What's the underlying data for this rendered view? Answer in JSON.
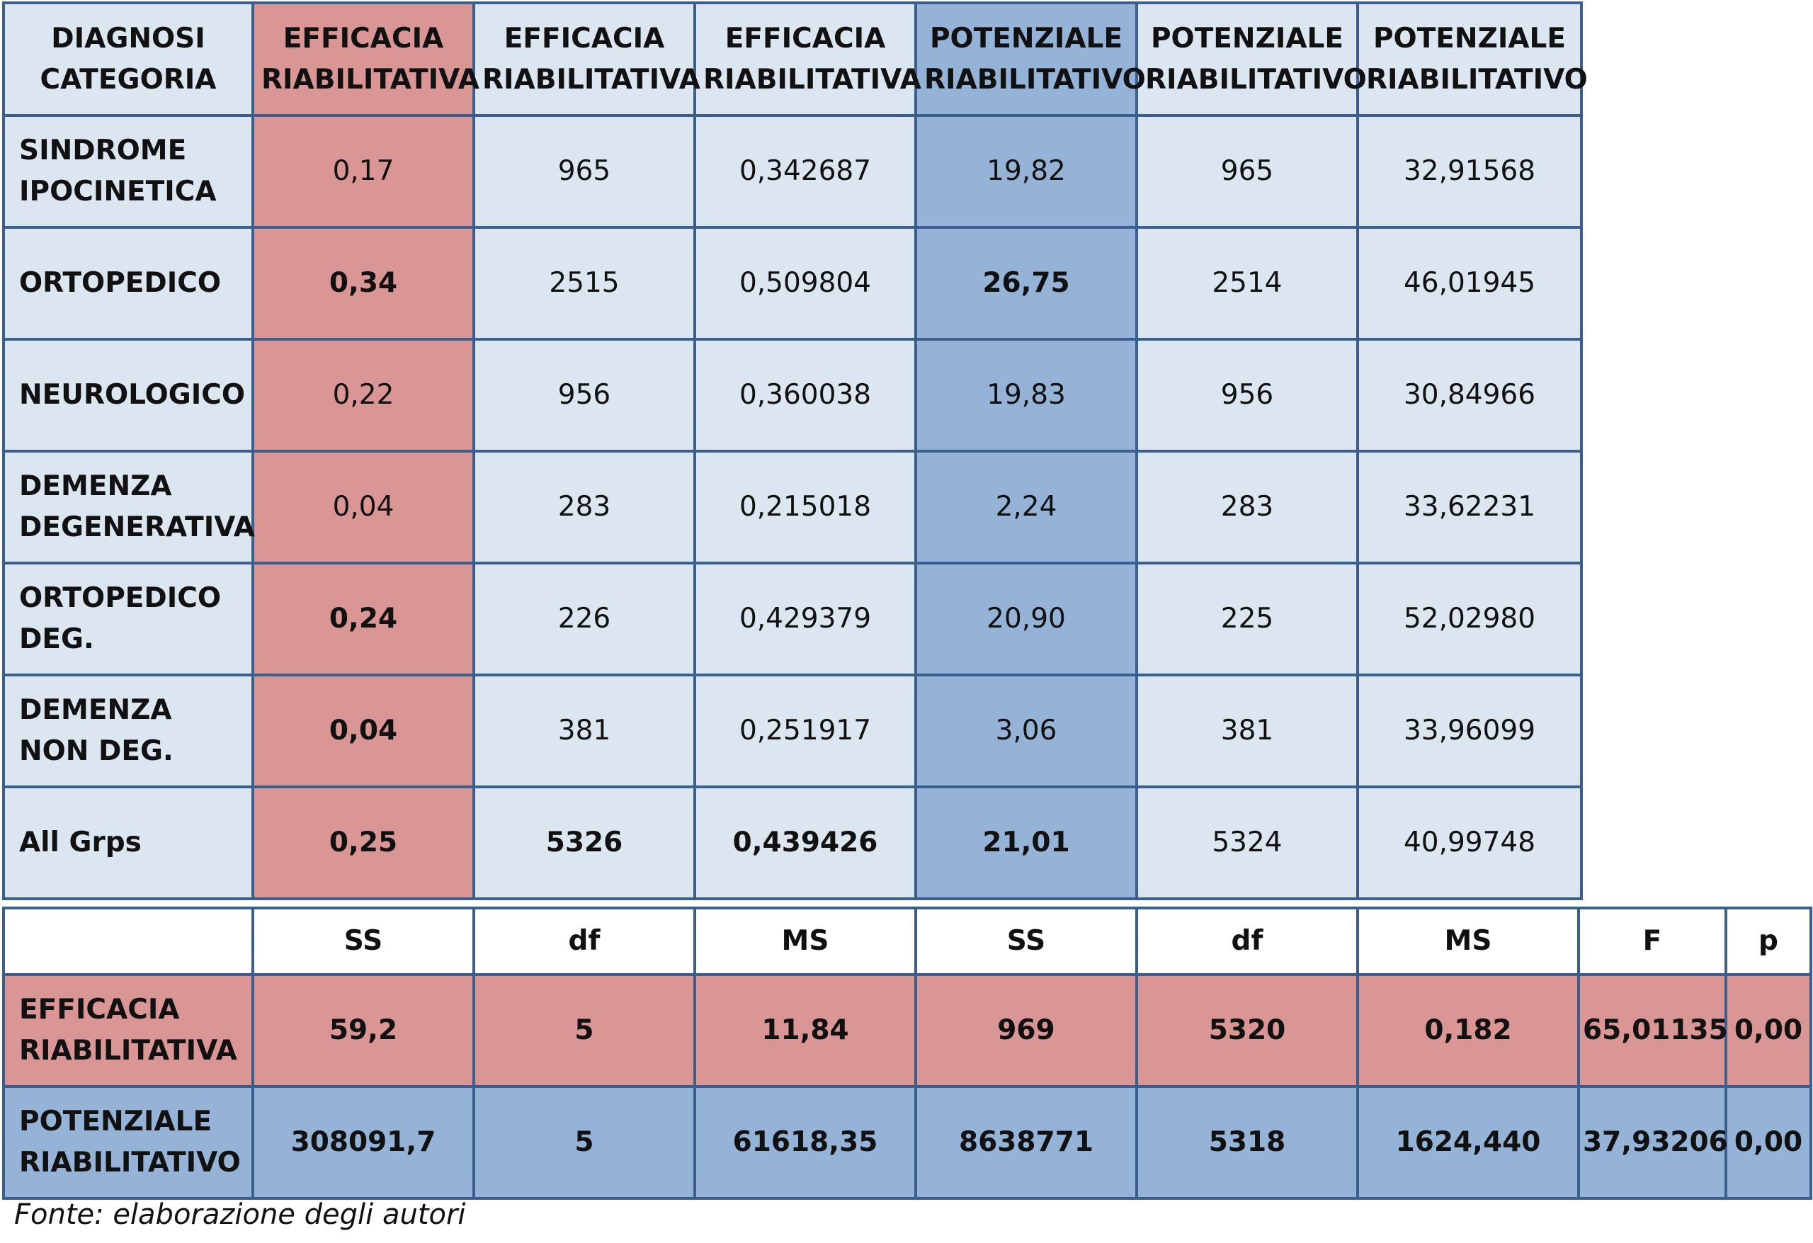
{
  "means_table": {
    "headers": [
      "DIAGNOSI CATEGORIA",
      "EFFICACIA RIABILITATIVA",
      "EFFICACIA RIABILITATIVA",
      "EFFICACIA RIABILITATIVA",
      "POTENZIALE RIABILITATIVO",
      "POTENZIALE RIABILITATIVO",
      "POTENZIALE RIABILITATIVO"
    ],
    "rows": [
      {
        "label": "SINDROME IPOCINETICA",
        "values": [
          "0,17",
          "965",
          "0,342687",
          "19,82",
          "965",
          "32,91568"
        ]
      },
      {
        "label": "ORTOPEDICO",
        "values": [
          "0,34",
          "2515",
          "0,509804",
          "26,75",
          "2514",
          "46,01945"
        ]
      },
      {
        "label": "NEUROLOGICO",
        "values": [
          "0,22",
          "956",
          "0,360038",
          "19,83",
          "956",
          "30,84966"
        ]
      },
      {
        "label": "DEMENZA DEGENERATIVA",
        "values": [
          "0,04",
          "283",
          "0,215018",
          "2,24",
          "283",
          "33,62231"
        ]
      },
      {
        "label": "ORTOPEDICO DEG.",
        "values": [
          "0,24",
          "226",
          "0,429379",
          "20,90",
          "225",
          "52,02980"
        ]
      },
      {
        "label": "DEMENZA NON DEG.",
        "values": [
          "0,04",
          "381",
          "0,251917",
          "3,06",
          "381",
          "33,96099"
        ]
      },
      {
        "label": "All Grps",
        "values": [
          "0,25",
          "5326",
          "0,439426",
          "21,01",
          "5324",
          "40,99748"
        ]
      }
    ]
  },
  "anova_table": {
    "headers": [
      "",
      "SS",
      "df",
      "MS",
      "SS",
      "df",
      "MS",
      "F",
      "p"
    ],
    "rows": [
      {
        "label": "EFFICACIA RIABILITATIVA",
        "values": [
          "59,2",
          "5",
          "11,84",
          "969",
          "5320",
          "0,182",
          "65,01135",
          "0,00"
        ]
      },
      {
        "label": "POTENZIALE RIABILITATIVO",
        "values": [
          "308091,7",
          "5",
          "61618,35",
          "8638771",
          "5318",
          "1624,440",
          "37,93206",
          "0,00"
        ]
      }
    ]
  },
  "source_note": "Fonte: elaborazione degli autori",
  "colors": {
    "light_blue_cell": "#dce6f1",
    "red_cell": "#da9694",
    "blue_cell": "#95b3d7",
    "border": "#3a5f8f"
  }
}
